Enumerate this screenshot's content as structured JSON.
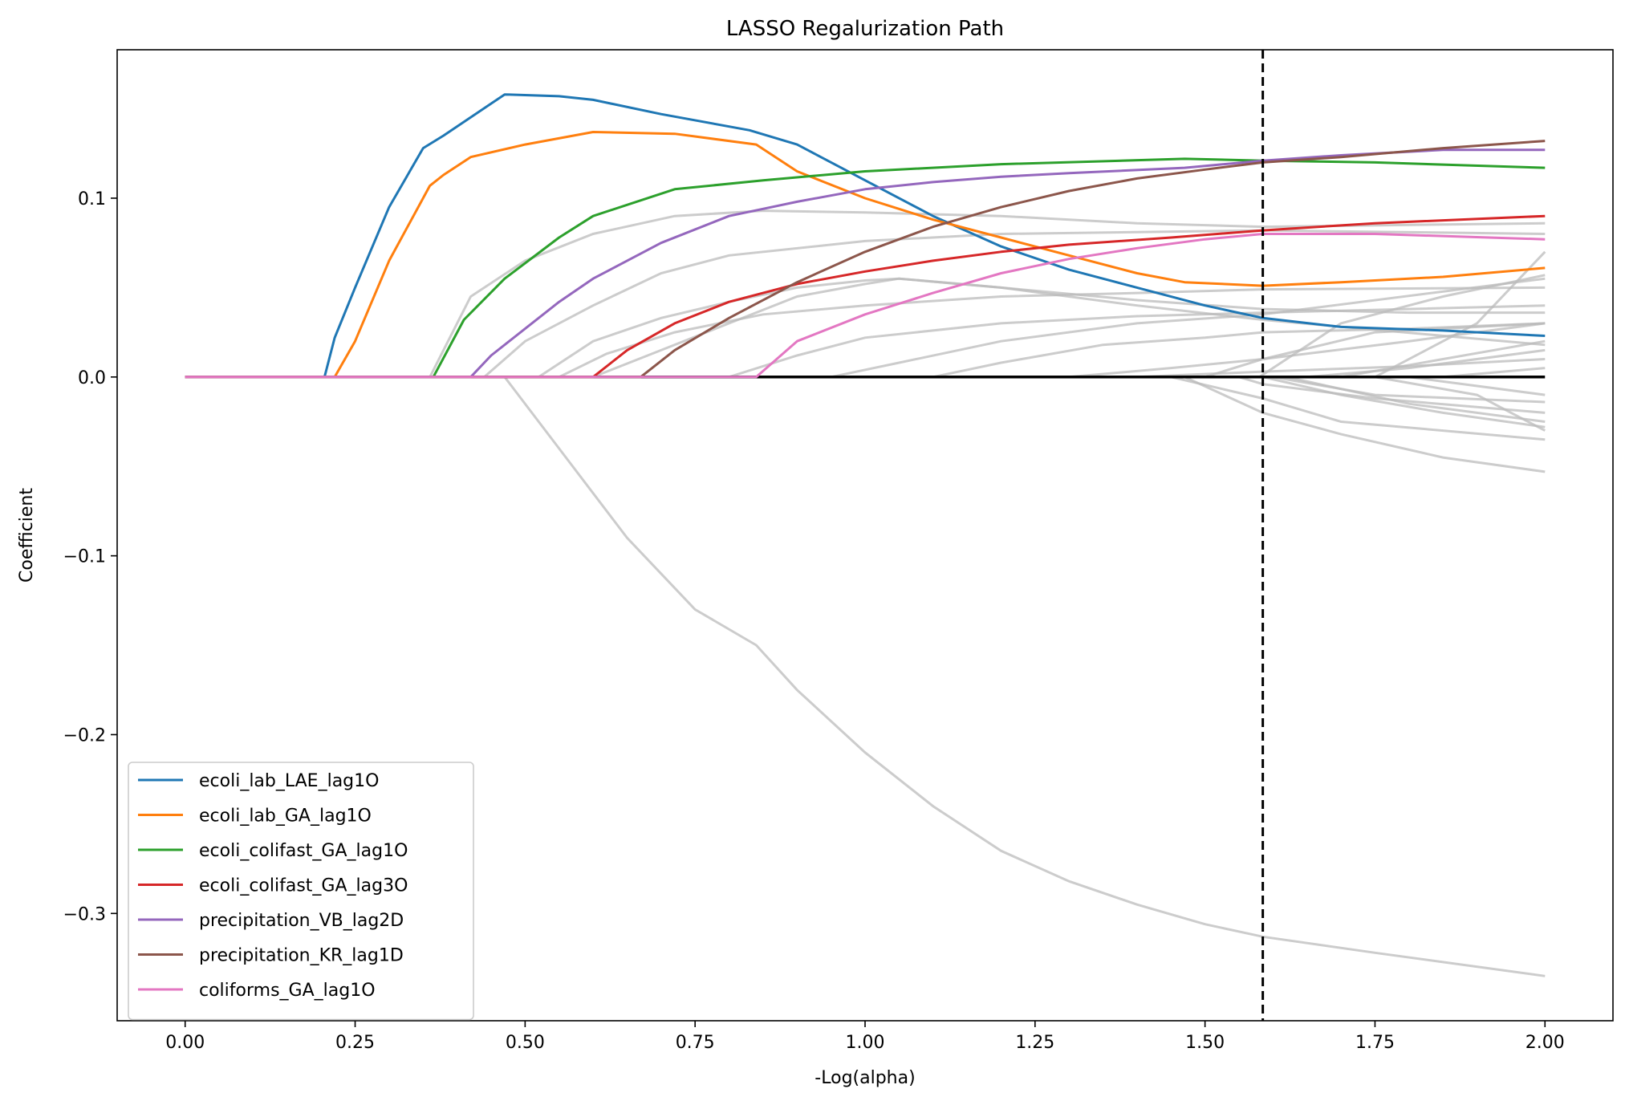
{
  "chart_data": {
    "type": "line",
    "title": "LASSO Regalurization Path",
    "xlabel": "-Log(alpha)",
    "ylabel": "Coefficient",
    "xlim": [
      -0.1,
      2.1
    ],
    "ylim": [
      -0.36,
      0.183
    ],
    "xticks": [
      0.0,
      0.25,
      0.5,
      0.75,
      1.0,
      1.25,
      1.5,
      1.75,
      2.0
    ],
    "xtick_labels": [
      "0.00",
      "0.25",
      "0.50",
      "0.75",
      "1.00",
      "1.25",
      "1.50",
      "1.75",
      "2.00"
    ],
    "yticks": [
      -0.3,
      -0.2,
      -0.1,
      0.0,
      0.1
    ],
    "ytick_labels": [
      "−0.3",
      "−0.2",
      "−0.1",
      "0.0",
      "0.1"
    ],
    "vline_x": 1.585,
    "legend_position": "lower-left",
    "series": [
      {
        "name": "ecoli_lab_LAE_lag1O",
        "color": "#1f77b4",
        "points": [
          [
            0,
            0
          ],
          [
            0.205,
            0
          ],
          [
            0.22,
            0.022
          ],
          [
            0.25,
            0.05
          ],
          [
            0.3,
            0.095
          ],
          [
            0.35,
            0.128
          ],
          [
            0.38,
            0.135
          ],
          [
            0.47,
            0.158
          ],
          [
            0.55,
            0.157
          ],
          [
            0.6,
            0.155
          ],
          [
            0.7,
            0.147
          ],
          [
            0.83,
            0.138
          ],
          [
            0.9,
            0.13
          ],
          [
            1.0,
            0.11
          ],
          [
            1.1,
            0.09
          ],
          [
            1.2,
            0.073
          ],
          [
            1.3,
            0.06
          ],
          [
            1.4,
            0.05
          ],
          [
            1.5,
            0.04
          ],
          [
            1.585,
            0.033
          ],
          [
            1.7,
            0.028
          ],
          [
            1.85,
            0.026
          ],
          [
            2.0,
            0.023
          ]
        ]
      },
      {
        "name": "ecoli_lab_GA_lag1O",
        "color": "#ff7f0e",
        "points": [
          [
            0,
            0
          ],
          [
            0.22,
            0
          ],
          [
            0.25,
            0.02
          ],
          [
            0.3,
            0.065
          ],
          [
            0.36,
            0.107
          ],
          [
            0.38,
            0.113
          ],
          [
            0.42,
            0.123
          ],
          [
            0.5,
            0.13
          ],
          [
            0.6,
            0.137
          ],
          [
            0.72,
            0.136
          ],
          [
            0.84,
            0.13
          ],
          [
            0.9,
            0.115
          ],
          [
            1.0,
            0.1
          ],
          [
            1.1,
            0.088
          ],
          [
            1.2,
            0.078
          ],
          [
            1.3,
            0.068
          ],
          [
            1.4,
            0.058
          ],
          [
            1.47,
            0.053
          ],
          [
            1.585,
            0.051
          ],
          [
            1.7,
            0.053
          ],
          [
            1.85,
            0.056
          ],
          [
            2.0,
            0.061
          ]
        ]
      },
      {
        "name": "ecoli_colifast_GA_lag1O",
        "color": "#2ca02c",
        "points": [
          [
            0,
            0
          ],
          [
            0.365,
            0
          ],
          [
            0.41,
            0.032
          ],
          [
            0.47,
            0.055
          ],
          [
            0.55,
            0.078
          ],
          [
            0.6,
            0.09
          ],
          [
            0.72,
            0.105
          ],
          [
            0.85,
            0.11
          ],
          [
            1.0,
            0.115
          ],
          [
            1.2,
            0.119
          ],
          [
            1.47,
            0.122
          ],
          [
            1.585,
            0.121
          ],
          [
            1.75,
            0.12
          ],
          [
            2.0,
            0.117
          ]
        ]
      },
      {
        "name": "ecoli_colifast_GA_lag3O",
        "color": "#d62728",
        "points": [
          [
            0,
            0
          ],
          [
            0.6,
            0
          ],
          [
            0.65,
            0.015
          ],
          [
            0.72,
            0.03
          ],
          [
            0.8,
            0.042
          ],
          [
            0.9,
            0.052
          ],
          [
            1.0,
            0.059
          ],
          [
            1.1,
            0.065
          ],
          [
            1.2,
            0.07
          ],
          [
            1.3,
            0.074
          ],
          [
            1.45,
            0.078
          ],
          [
            1.585,
            0.082
          ],
          [
            1.75,
            0.086
          ],
          [
            2.0,
            0.09
          ]
        ]
      },
      {
        "name": "precipitation_VB_lag2D",
        "color": "#9467bd",
        "points": [
          [
            0,
            0
          ],
          [
            0.42,
            0
          ],
          [
            0.45,
            0.012
          ],
          [
            0.5,
            0.027
          ],
          [
            0.55,
            0.042
          ],
          [
            0.6,
            0.055
          ],
          [
            0.7,
            0.075
          ],
          [
            0.8,
            0.09
          ],
          [
            0.9,
            0.098
          ],
          [
            1.0,
            0.105
          ],
          [
            1.1,
            0.109
          ],
          [
            1.2,
            0.112
          ],
          [
            1.3,
            0.114
          ],
          [
            1.47,
            0.117
          ],
          [
            1.585,
            0.121
          ],
          [
            1.7,
            0.124
          ],
          [
            1.85,
            0.127
          ],
          [
            2.0,
            0.127
          ]
        ]
      },
      {
        "name": "precipitation_KR_lag1D",
        "color": "#8c564b",
        "points": [
          [
            0,
            0
          ],
          [
            0.67,
            0
          ],
          [
            0.72,
            0.015
          ],
          [
            0.8,
            0.033
          ],
          [
            0.9,
            0.053
          ],
          [
            1.0,
            0.07
          ],
          [
            1.1,
            0.084
          ],
          [
            1.2,
            0.095
          ],
          [
            1.3,
            0.104
          ],
          [
            1.4,
            0.111
          ],
          [
            1.5,
            0.116
          ],
          [
            1.585,
            0.12
          ],
          [
            1.7,
            0.123
          ],
          [
            1.85,
            0.128
          ],
          [
            2.0,
            0.132
          ]
        ]
      },
      {
        "name": "coliforms_GA_lag1O",
        "color": "#e377c2",
        "points": [
          [
            0,
            0
          ],
          [
            0.84,
            0
          ],
          [
            0.9,
            0.02
          ],
          [
            1.0,
            0.035
          ],
          [
            1.1,
            0.047
          ],
          [
            1.2,
            0.058
          ],
          [
            1.3,
            0.066
          ],
          [
            1.4,
            0.072
          ],
          [
            1.5,
            0.077
          ],
          [
            1.585,
            0.08
          ],
          [
            1.75,
            0.08
          ],
          [
            2.0,
            0.077
          ]
        ]
      }
    ],
    "gray_series": [
      [
        [
          0,
          0
        ],
        [
          0.47,
          0
        ],
        [
          0.55,
          -0.04
        ],
        [
          0.65,
          -0.09
        ],
        [
          0.75,
          -0.13
        ],
        [
          0.84,
          -0.15
        ],
        [
          0.9,
          -0.175
        ],
        [
          1.0,
          -0.21
        ],
        [
          1.1,
          -0.24
        ],
        [
          1.2,
          -0.265
        ],
        [
          1.3,
          -0.282
        ],
        [
          1.4,
          -0.295
        ],
        [
          1.5,
          -0.306
        ],
        [
          1.585,
          -0.313
        ],
        [
          1.75,
          -0.322
        ],
        [
          2.0,
          -0.335
        ]
      ],
      [
        [
          0,
          0
        ],
        [
          0.36,
          0
        ],
        [
          0.42,
          0.045
        ],
        [
          0.5,
          0.065
        ],
        [
          0.6,
          0.08
        ],
        [
          0.72,
          0.09
        ],
        [
          0.85,
          0.093
        ],
        [
          1.0,
          0.092
        ],
        [
          1.2,
          0.09
        ],
        [
          1.4,
          0.086
        ],
        [
          1.585,
          0.084
        ],
        [
          2.0,
          0.086
        ]
      ],
      [
        [
          0,
          0
        ],
        [
          0.44,
          0
        ],
        [
          0.5,
          0.02
        ],
        [
          0.6,
          0.04
        ],
        [
          0.7,
          0.058
        ],
        [
          0.8,
          0.068
        ],
        [
          1.0,
          0.076
        ],
        [
          1.2,
          0.08
        ],
        [
          1.585,
          0.082
        ],
        [
          2.0,
          0.08
        ]
      ],
      [
        [
          0,
          0
        ],
        [
          0.52,
          0
        ],
        [
          0.6,
          0.02
        ],
        [
          0.7,
          0.033
        ],
        [
          0.8,
          0.042
        ],
        [
          0.9,
          0.05
        ],
        [
          1.0,
          0.054
        ],
        [
          1.05,
          0.055
        ],
        [
          1.2,
          0.05
        ],
        [
          1.4,
          0.043
        ],
        [
          1.585,
          0.038
        ],
        [
          1.8,
          0.036
        ],
        [
          2.0,
          0.036
        ]
      ],
      [
        [
          0,
          0
        ],
        [
          0.55,
          0
        ],
        [
          0.62,
          0.013
        ],
        [
          0.72,
          0.025
        ],
        [
          0.85,
          0.035
        ],
        [
          1.0,
          0.04
        ],
        [
          1.2,
          0.045
        ],
        [
          1.4,
          0.047
        ],
        [
          1.585,
          0.049
        ],
        [
          2.0,
          0.05
        ]
      ],
      [
        [
          0,
          0
        ],
        [
          0.6,
          0
        ],
        [
          0.7,
          0.015
        ],
        [
          0.8,
          0.03
        ],
        [
          0.9,
          0.045
        ],
        [
          1.0,
          0.052
        ],
        [
          1.05,
          0.055
        ],
        [
          1.2,
          0.05
        ],
        [
          1.4,
          0.04
        ],
        [
          1.585,
          0.032
        ],
        [
          2.0,
          0.018
        ]
      ],
      [
        [
          0,
          0
        ],
        [
          0.8,
          0
        ],
        [
          0.9,
          0.012
        ],
        [
          1.0,
          0.022
        ],
        [
          1.2,
          0.03
        ],
        [
          1.4,
          0.034
        ],
        [
          1.585,
          0.036
        ],
        [
          1.8,
          0.038
        ],
        [
          2.0,
          0.04
        ]
      ],
      [
        [
          0,
          0
        ],
        [
          0.95,
          0
        ],
        [
          1.05,
          0.008
        ],
        [
          1.2,
          0.02
        ],
        [
          1.4,
          0.03
        ],
        [
          1.585,
          0.035
        ],
        [
          2.0,
          0.055
        ]
      ],
      [
        [
          0,
          0
        ],
        [
          1.1,
          0
        ],
        [
          1.2,
          0.008
        ],
        [
          1.35,
          0.018
        ],
        [
          1.5,
          0.022
        ],
        [
          1.585,
          0.025
        ],
        [
          1.8,
          0.027
        ],
        [
          2.0,
          0.03
        ]
      ],
      [
        [
          0,
          0
        ],
        [
          1.3,
          0
        ],
        [
          1.45,
          0.005
        ],
        [
          1.585,
          0.01
        ],
        [
          1.8,
          0.02
        ],
        [
          2.0,
          0.03
        ]
      ],
      [
        [
          0,
          0
        ],
        [
          1.4,
          0
        ],
        [
          1.585,
          0.003
        ],
        [
          1.8,
          0.006
        ],
        [
          2.0,
          0.01
        ]
      ],
      [
        [
          0,
          0
        ],
        [
          1.45,
          0
        ],
        [
          1.585,
          -0.012
        ],
        [
          1.7,
          -0.025
        ],
        [
          1.85,
          -0.03
        ],
        [
          2.0,
          -0.035
        ]
      ],
      [
        [
          0,
          0
        ],
        [
          1.47,
          0
        ],
        [
          1.585,
          -0.02
        ],
        [
          1.7,
          -0.032
        ],
        [
          1.85,
          -0.045
        ],
        [
          2.0,
          -0.053
        ]
      ],
      [
        [
          0,
          0
        ],
        [
          1.55,
          0
        ],
        [
          1.585,
          -0.004
        ],
        [
          1.75,
          -0.012
        ],
        [
          2.0,
          -0.02
        ]
      ],
      [
        [
          0,
          0
        ],
        [
          1.585,
          0
        ],
        [
          1.7,
          -0.01
        ],
        [
          1.85,
          -0.02
        ],
        [
          2.0,
          -0.028
        ]
      ],
      [
        [
          0,
          0
        ],
        [
          1.6,
          0
        ],
        [
          1.75,
          -0.01
        ],
        [
          2.0,
          -0.014
        ]
      ],
      [
        [
          0,
          0
        ],
        [
          1.62,
          0
        ],
        [
          1.8,
          -0.015
        ],
        [
          2.0,
          -0.025
        ]
      ],
      [
        [
          0,
          0
        ],
        [
          1.65,
          0
        ],
        [
          1.8,
          0.005
        ],
        [
          2.0,
          0.015
        ]
      ],
      [
        [
          0,
          0
        ],
        [
          1.7,
          0
        ],
        [
          1.85,
          0.01
        ],
        [
          2.0,
          0.02
        ]
      ],
      [
        [
          0,
          0
        ],
        [
          1.75,
          0
        ],
        [
          1.9,
          -0.01
        ],
        [
          2.0,
          -0.03
        ]
      ],
      [
        [
          0,
          0
        ],
        [
          1.75,
          0
        ],
        [
          1.9,
          0.03
        ],
        [
          2.0,
          0.07
        ]
      ],
      [
        [
          0,
          0
        ],
        [
          1.8,
          0
        ],
        [
          2.0,
          -0.01
        ]
      ],
      [
        [
          0,
          0
        ],
        [
          1.85,
          0
        ],
        [
          2.0,
          0.005
        ]
      ],
      [
        [
          0,
          0
        ],
        [
          1.58,
          0
        ],
        [
          1.7,
          0.03
        ],
        [
          1.85,
          0.045
        ],
        [
          2.0,
          0.057
        ]
      ],
      [
        [
          0,
          0
        ],
        [
          1.5,
          0
        ],
        [
          1.585,
          0.01
        ],
        [
          1.75,
          0.025
        ],
        [
          2.0,
          0.03
        ]
      ]
    ]
  }
}
